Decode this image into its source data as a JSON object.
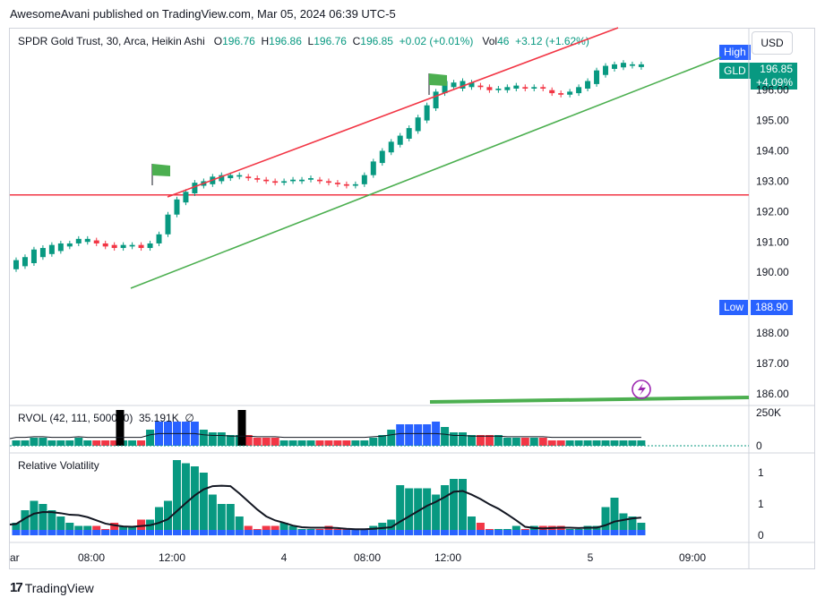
{
  "publisher_line": "AwesomeAvani published on TradingView.com, Mar 05, 2024 06:39 UTC-5",
  "legend": {
    "symbol": "SPDR Gold Trust, 30, Arca, Heikin Ashi",
    "o_label": "O",
    "o": "196.76",
    "h_label": "H",
    "h": "196.86",
    "l_label": "L",
    "l": "196.76",
    "c_label": "C",
    "c": "196.85",
    "change": "+0.02 (+0.01%)",
    "vol_label": "Vol",
    "vol": "46",
    "vol_change": "+3.12 (+1.62%)"
  },
  "currency": "USD",
  "tags": {
    "high_label": "High",
    "symbol": "GLD",
    "last_price": "196.85",
    "last_change": "+4.09%",
    "low_label": "Low",
    "low_value": "188.90"
  },
  "rvol_title": "RVOL (42, 111, 500000)",
  "rvol_values": "35.191K",
  "rvol_zero_symbol": "∅",
  "rv_title": "Relative Volatility",
  "brand": "TradingView",
  "colors": {
    "up": "#089981",
    "down": "#f23645",
    "blue": "#2962ff",
    "red_line": "#f23645",
    "green_line": "#4caf50"
  },
  "chart_data": {
    "type": "candlestick",
    "y_ticks": [
      "196.00",
      "195.00",
      "194.00",
      "193.00",
      "192.00",
      "191.00",
      "190.00",
      "188.00",
      "187.00",
      "186.00"
    ],
    "y_range": [
      185.7,
      197.2
    ],
    "x_ticks": [
      "ar",
      "08:00",
      "12:00",
      "4",
      "08:00",
      "12:00",
      "5",
      "09:00"
    ],
    "horizontal_level": 192.55,
    "candles": [
      [
        190.1,
        190.4
      ],
      [
        190.2,
        190.5
      ],
      [
        190.3,
        190.75
      ],
      [
        190.5,
        190.8
      ],
      [
        190.6,
        190.9
      ],
      [
        190.7,
        190.95
      ],
      [
        190.85,
        190.95
      ],
      [
        190.95,
        191.1
      ],
      [
        191.0,
        191.1
      ],
      [
        191.05,
        190.95
      ],
      [
        190.95,
        190.85
      ],
      [
        190.9,
        190.8
      ],
      [
        190.8,
        190.9
      ],
      [
        190.85,
        190.9
      ],
      [
        190.9,
        190.8
      ],
      [
        190.8,
        190.95
      ],
      [
        190.95,
        191.25
      ],
      [
        191.25,
        191.9
      ],
      [
        191.9,
        192.4
      ],
      [
        192.3,
        192.65
      ],
      [
        192.6,
        192.95
      ],
      [
        192.85,
        193.0
      ],
      [
        192.9,
        193.15
      ],
      [
        193.0,
        193.2
      ],
      [
        193.1,
        193.2
      ],
      [
        193.15,
        193.2
      ],
      [
        193.15,
        193.1
      ],
      [
        193.1,
        193.05
      ],
      [
        193.05,
        193.0
      ],
      [
        193.0,
        192.95
      ],
      [
        192.95,
        193.0
      ],
      [
        193.0,
        193.05
      ],
      [
        193.0,
        193.05
      ],
      [
        193.05,
        193.1
      ],
      [
        193.05,
        193.0
      ],
      [
        193.0,
        192.95
      ],
      [
        192.95,
        192.9
      ],
      [
        192.9,
        192.85
      ],
      [
        192.85,
        192.9
      ],
      [
        192.9,
        193.2
      ],
      [
        193.2,
        193.65
      ],
      [
        193.6,
        194.0
      ],
      [
        193.95,
        194.3
      ],
      [
        194.2,
        194.5
      ],
      [
        194.4,
        194.75
      ],
      [
        194.65,
        195.1
      ],
      [
        195.0,
        195.5
      ],
      [
        195.4,
        195.95
      ],
      [
        195.9,
        196.3
      ],
      [
        196.1,
        196.25
      ],
      [
        196.05,
        196.3
      ],
      [
        196.1,
        196.25
      ],
      [
        196.15,
        196.1
      ],
      [
        196.1,
        196.0
      ],
      [
        196.0,
        196.05
      ],
      [
        196.0,
        196.1
      ],
      [
        196.05,
        196.15
      ],
      [
        196.1,
        196.05
      ],
      [
        196.05,
        196.1
      ],
      [
        196.1,
        196.05
      ],
      [
        196.0,
        195.9
      ],
      [
        195.9,
        195.85
      ],
      [
        195.85,
        195.95
      ],
      [
        195.9,
        196.1
      ],
      [
        196.05,
        196.3
      ],
      [
        196.2,
        196.65
      ],
      [
        196.5,
        196.8
      ],
      [
        196.7,
        196.85
      ],
      [
        196.75,
        196.9
      ],
      [
        196.8,
        196.85
      ],
      [
        196.76,
        196.85
      ]
    ],
    "rvol_series": [
      2,
      2,
      3,
      3,
      2,
      2,
      2,
      3,
      2,
      2,
      2,
      2,
      2,
      2,
      2,
      6,
      9,
      9,
      9,
      9,
      9,
      6,
      5,
      5,
      4,
      4,
      4,
      3,
      3,
      3,
      2,
      2,
      2,
      2,
      2,
      2,
      2,
      2,
      2,
      2,
      3,
      4,
      6,
      8,
      8,
      8,
      8,
      9,
      7,
      5,
      5,
      4,
      4,
      4,
      4,
      3,
      3,
      3,
      3,
      3,
      2,
      2,
      2,
      2,
      2,
      2,
      2,
      2,
      2,
      2,
      2
    ],
    "rv_series": [
      0.4,
      0.8,
      1.1,
      1.0,
      0.8,
      0.6,
      0.4,
      0.3,
      0.3,
      0.3,
      0.2,
      0.4,
      0.3,
      0.3,
      0.5,
      0.5,
      0.9,
      1.1,
      2.4,
      2.3,
      2.2,
      2.0,
      1.3,
      1.0,
      1.0,
      0.6,
      0.3,
      0.2,
      0.3,
      0.3,
      0.4,
      0.3,
      0.2,
      0.2,
      0.2,
      0.3,
      0.2,
      0.2,
      0.2,
      0.2,
      0.3,
      0.4,
      0.5,
      1.6,
      1.5,
      1.5,
      1.5,
      1.3,
      1.6,
      1.8,
      1.8,
      0.6,
      0.4,
      0.2,
      0.2,
      0.2,
      0.3,
      0.2,
      0.3,
      0.3,
      0.3,
      0.3,
      0.2,
      0.2,
      0.3,
      0.3,
      0.9,
      1.2,
      0.7,
      0.6,
      0.4
    ]
  }
}
